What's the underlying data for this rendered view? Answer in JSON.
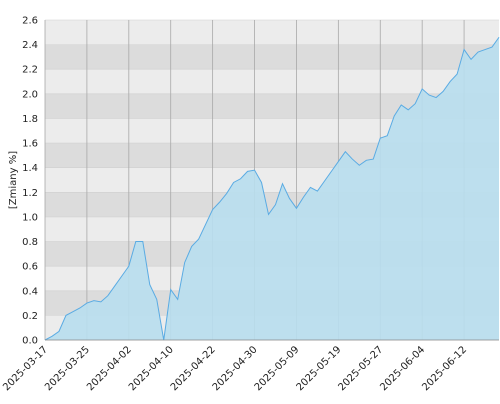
{
  "chart_data": {
    "type": "area",
    "y_label": "[Zmiany %]",
    "categories": [
      "2025-03-17",
      null,
      null,
      null,
      null,
      null,
      "2025-03-25",
      null,
      null,
      null,
      null,
      null,
      "2025-04-02",
      null,
      null,
      null,
      null,
      null,
      "2025-04-10",
      null,
      null,
      null,
      null,
      null,
      "2025-04-22",
      null,
      null,
      null,
      null,
      null,
      "2025-04-30",
      null,
      null,
      null,
      null,
      null,
      "2025-05-09",
      null,
      null,
      null,
      null,
      null,
      "2025-05-19",
      null,
      null,
      null,
      null,
      null,
      "2025-05-27",
      null,
      null,
      null,
      null,
      null,
      "2025-06-04",
      null,
      null,
      null,
      null,
      null,
      "2025-06-12",
      null,
      null,
      null,
      null,
      null
    ],
    "values": [
      0.0,
      0.03,
      0.07,
      0.2,
      0.23,
      0.26,
      0.3,
      0.32,
      0.31,
      0.36,
      0.44,
      0.52,
      0.6,
      0.8,
      0.8,
      0.45,
      0.33,
      0.0,
      0.41,
      0.33,
      0.63,
      0.76,
      0.82,
      0.94,
      1.06,
      1.12,
      1.19,
      1.28,
      1.31,
      1.37,
      1.38,
      1.28,
      1.02,
      1.1,
      1.27,
      1.15,
      1.07,
      1.16,
      1.24,
      1.21,
      1.29,
      1.37,
      1.45,
      1.53,
      1.47,
      1.42,
      1.46,
      1.47,
      1.64,
      1.66,
      1.82,
      1.91,
      1.87,
      1.92,
      2.04,
      1.99,
      1.97,
      2.02,
      2.1,
      2.16,
      2.36,
      2.28,
      2.34,
      2.36,
      2.38,
      2.46
    ],
    "color": "#5aabe3",
    "fill": "#b8deee",
    "ylim": [
      0,
      2.6
    ],
    "yticks": [
      {
        "value": 0,
        "label": "0.0"
      },
      0.2,
      0.4,
      0.6,
      0.8,
      {
        "value": 1,
        "label": "1.0"
      },
      1.2,
      1.4,
      1.6,
      1.8,
      {
        "value": 2,
        "label": "2.0"
      },
      2.2,
      2.4,
      2.6
    ],
    "grid": true
  }
}
